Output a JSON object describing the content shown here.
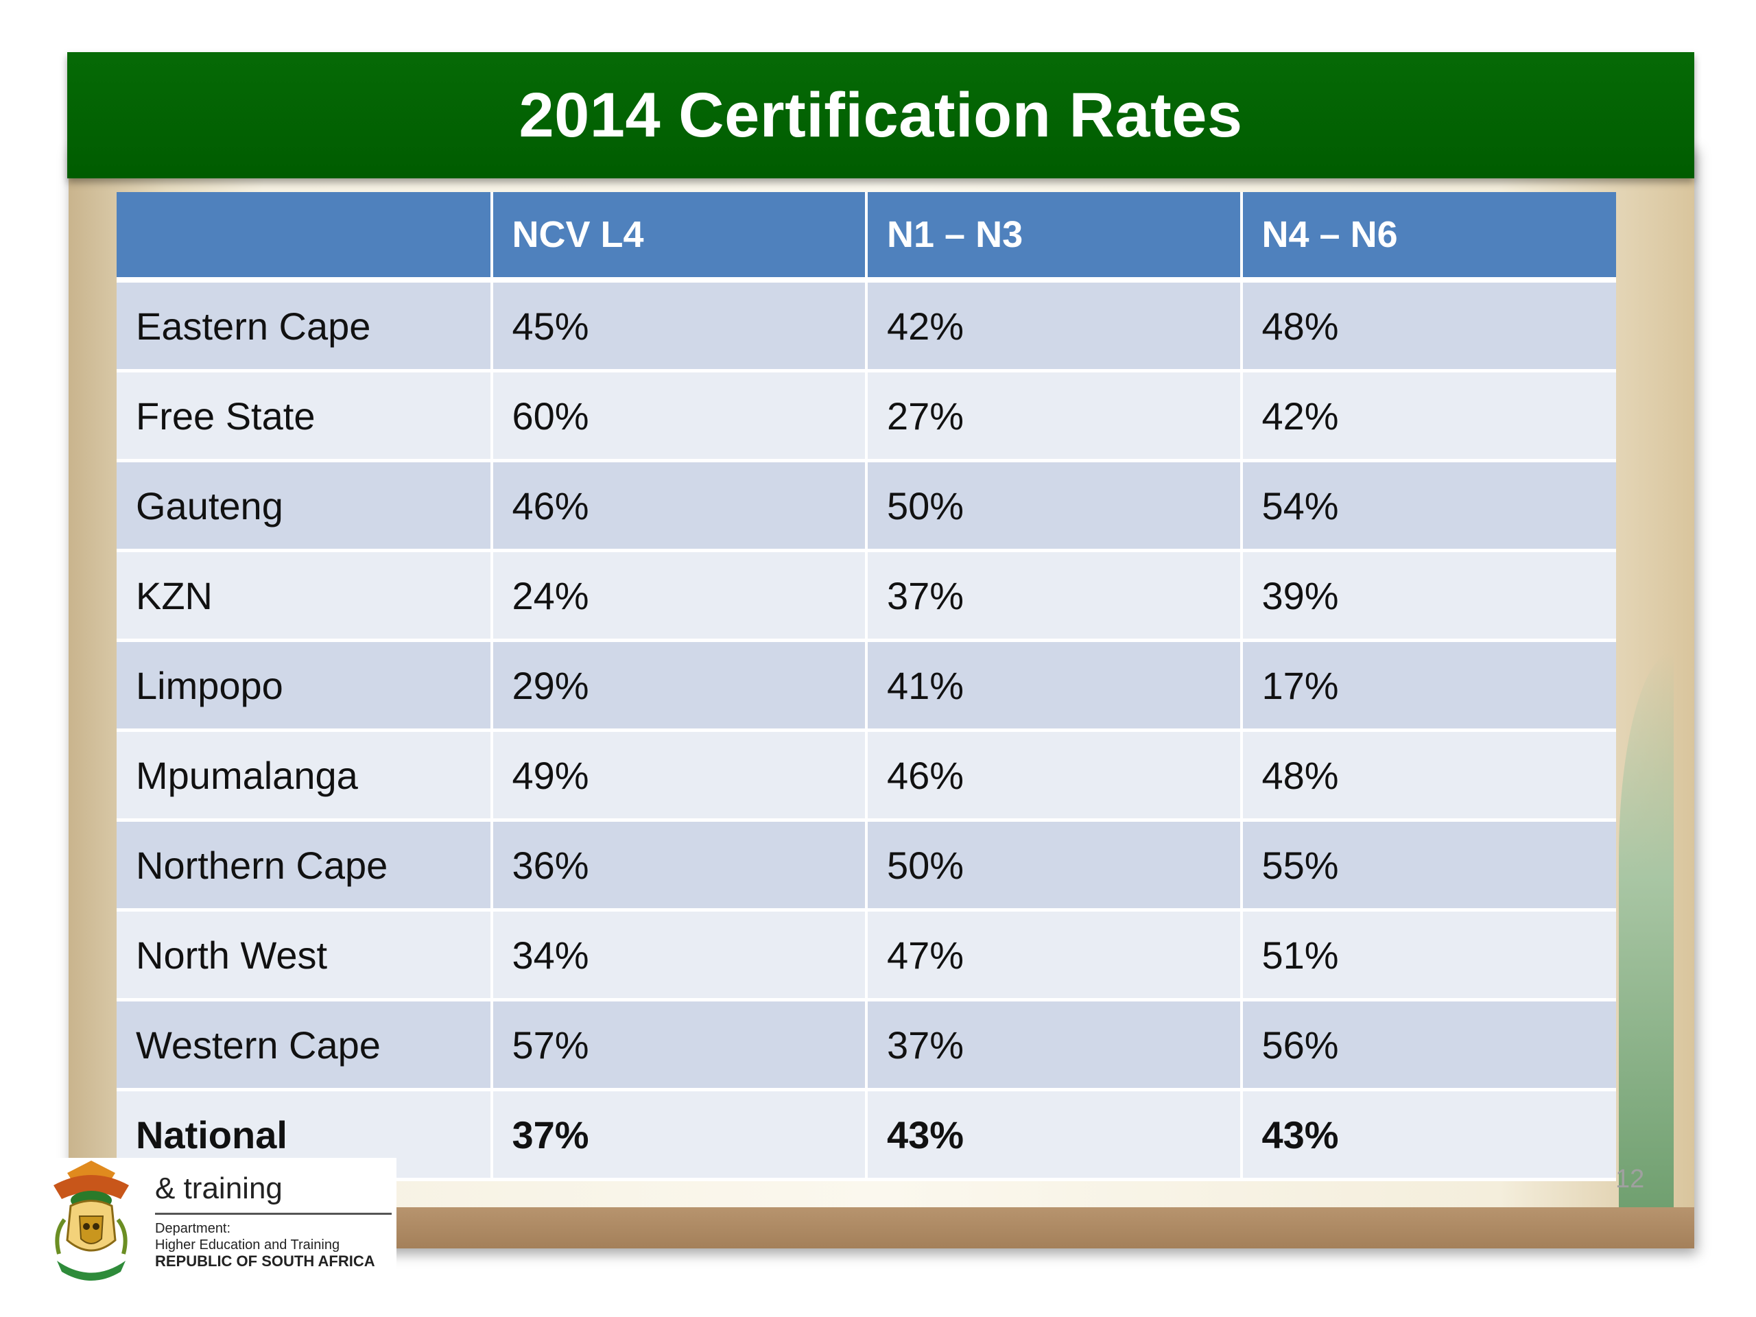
{
  "slide": {
    "title": "2014 Certification Rates",
    "page_number": "12"
  },
  "table": {
    "headers": [
      "",
      "NCV L4",
      "N1 – N3",
      "N4 – N6"
    ],
    "rows": [
      {
        "region": "Eastern Cape",
        "ncv_l4": "45%",
        "n1_n3": "42%",
        "n4_n6": "48%"
      },
      {
        "region": "Free State",
        "ncv_l4": "60%",
        "n1_n3": "27%",
        "n4_n6": "42%"
      },
      {
        "region": "Gauteng",
        "ncv_l4": "46%",
        "n1_n3": "50%",
        "n4_n6": "54%"
      },
      {
        "region": "KZN",
        "ncv_l4": "24%",
        "n1_n3": "37%",
        "n4_n6": "39%"
      },
      {
        "region": "Limpopo",
        "ncv_l4": "29%",
        "n1_n3": "41%",
        "n4_n6": "17%"
      },
      {
        "region": "Mpumalanga",
        "ncv_l4": "49%",
        "n1_n3": "46%",
        "n4_n6": "48%"
      },
      {
        "region": "Northern Cape",
        "ncv_l4": "36%",
        "n1_n3": "50%",
        "n4_n6": "55%"
      },
      {
        "region": "North West",
        "ncv_l4": "34%",
        "n1_n3": "47%",
        "n4_n6": "51%"
      },
      {
        "region": "Western Cape",
        "ncv_l4": "57%",
        "n1_n3": "37%",
        "n4_n6": "56%"
      },
      {
        "region": "National",
        "ncv_l4": "37%",
        "n1_n3": "43%",
        "n4_n6": "43%"
      }
    ]
  },
  "logo": {
    "main": "& training",
    "line1": "Department:",
    "line2": "Higher Education and Training",
    "line3": "REPUBLIC OF SOUTH AFRICA"
  },
  "colors": {
    "banner": "#006400",
    "header": "#4f81bd",
    "row_odd": "#d0d8e8",
    "row_even": "#e9edf4"
  }
}
